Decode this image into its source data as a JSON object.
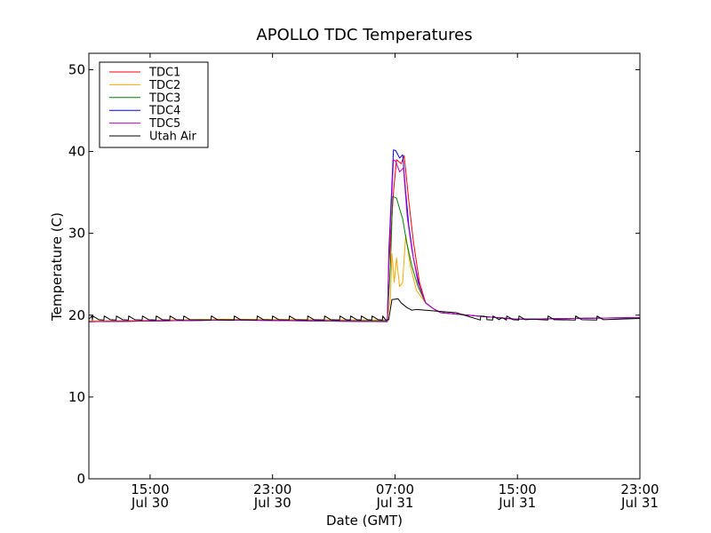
{
  "chart_data": {
    "type": "line",
    "title": "APOLLO TDC Temperatures",
    "xlabel": "Date (GMT)",
    "ylabel": "Temperature (C)",
    "ylim": [
      0,
      52
    ],
    "xlim": [
      11,
      47
    ],
    "x_unit": "hours since Jul 30 00:00 GMT",
    "yticks": [
      0,
      10,
      20,
      30,
      40,
      50
    ],
    "xticks": [
      {
        "value": 15,
        "line1": "15:00",
        "line2": "Jul 30"
      },
      {
        "value": 23,
        "line1": "23:00",
        "line2": "Jul 30"
      },
      {
        "value": 31,
        "line1": "07:00",
        "line2": "Jul 31"
      },
      {
        "value": 39,
        "line1": "15:00",
        "line2": "Jul 31"
      },
      {
        "value": 47,
        "line1": "23:00",
        "line2": "Jul 31"
      }
    ],
    "legend_position": "top-left",
    "series": [
      {
        "name": "TDC1",
        "color": "#ff0000",
        "x": [
          11,
          20,
          30.5,
          30.6,
          30.9,
          31.1,
          31.4,
          31.6,
          31.9,
          32.2,
          32.6,
          33.0,
          33.5,
          34,
          37,
          39,
          47
        ],
        "y": [
          19.2,
          19.4,
          19.3,
          26.0,
          35.0,
          39.0,
          38.5,
          39.5,
          34.0,
          29.0,
          24.0,
          21.5,
          20.8,
          20.3,
          19.8,
          19.5,
          19.7
        ]
      },
      {
        "name": "TDC2",
        "color": "#ffa500",
        "x": [
          11,
          20,
          30.5,
          30.7,
          30.8,
          30.95,
          31.1,
          31.3,
          31.5,
          31.7,
          32.0,
          32.4,
          33.0,
          33.5,
          34,
          37,
          39,
          47
        ],
        "y": [
          19.3,
          19.5,
          19.4,
          22.0,
          27.5,
          24.0,
          27.0,
          23.5,
          24.0,
          29.8,
          26.0,
          23.0,
          21.5,
          20.8,
          20.3,
          19.8,
          19.5,
          19.7
        ]
      },
      {
        "name": "TDC3",
        "color": "#008000",
        "x": [
          11,
          20,
          30.5,
          30.7,
          30.85,
          31.1,
          31.3,
          31.5,
          31.75,
          32.1,
          32.5,
          33.0,
          33.5,
          34,
          37,
          39,
          47
        ],
        "y": [
          19.2,
          19.4,
          19.3,
          26.0,
          34.5,
          34.3,
          33.0,
          31.8,
          29.0,
          26.0,
          23.5,
          21.5,
          20.8,
          20.3,
          19.8,
          19.5,
          19.7
        ]
      },
      {
        "name": "TDC4",
        "color": "#0000ff",
        "x": [
          11,
          20,
          30.5,
          30.6,
          30.9,
          31.05,
          31.3,
          31.5,
          31.7,
          31.9,
          32.2,
          32.6,
          33.0,
          33.5,
          34,
          37,
          39,
          47
        ],
        "y": [
          19.2,
          19.4,
          19.2,
          28.0,
          40.2,
          40.1,
          39.2,
          39.6,
          35.0,
          31.0,
          27.0,
          23.5,
          21.5,
          20.8,
          20.3,
          19.8,
          19.5,
          19.7
        ]
      },
      {
        "name": "TDC5",
        "color": "#bf00bf",
        "x": [
          11,
          20,
          30.5,
          30.6,
          30.9,
          31.05,
          31.3,
          31.55,
          31.8,
          32.1,
          32.5,
          33.0,
          33.5,
          34,
          37,
          39,
          47
        ],
        "y": [
          19.2,
          19.4,
          19.2,
          27.0,
          39.0,
          38.8,
          37.5,
          38.0,
          32.0,
          28.0,
          24.0,
          21.5,
          20.8,
          20.3,
          19.8,
          19.5,
          19.7
        ]
      },
      {
        "name": "Utah Air",
        "color": "#000000",
        "x": [
          11,
          11.2,
          30.4,
          30.6,
          30.8,
          31.2,
          31.4,
          31.8,
          32.1,
          32.4,
          33.0,
          35,
          37,
          38,
          40,
          47
        ],
        "y": [
          19.5,
          19.9,
          19.4,
          19.6,
          21.9,
          22.0,
          21.5,
          20.9,
          20.6,
          20.7,
          20.6,
          20.3,
          19.8,
          19.7,
          19.5,
          19.6
        ],
        "spikes_at": [
          11.25,
          12.0,
          12.8,
          13.6,
          14.5,
          15.4,
          16.3,
          17.2,
          19.0,
          20.5,
          22.0,
          23.0,
          24.1,
          25.3,
          26.4,
          27.4,
          28.1,
          28.8,
          29.5,
          30.2,
          36.6,
          37.4,
          38.3,
          39.1,
          41.0,
          42.8,
          44.2
        ],
        "spike_peak": 19.9,
        "spike_base": 19.4
      }
    ]
  }
}
